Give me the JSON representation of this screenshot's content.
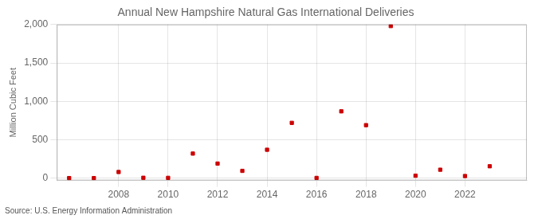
{
  "chart_data": {
    "type": "scatter",
    "title": "Annual New Hampshire Natural Gas International Deliveries",
    "y_label": "Million Cubic Feet",
    "annotations": [
      "Source: U.S. Energy Information Administration"
    ],
    "x": [
      2006,
      2007,
      2008,
      2009,
      2010,
      2011,
      2012,
      2013,
      2014,
      2015,
      2016,
      2017,
      2018,
      2019,
      2020,
      2021,
      2022,
      2023
    ],
    "values": [
      1,
      1,
      80,
      5,
      4,
      320,
      190,
      95,
      370,
      720,
      3,
      870,
      690,
      1980,
      32,
      110,
      28,
      155
    ],
    "color": "#cc0000",
    "marker": "square",
    "xlim": [
      2005.5,
      2024.5
    ],
    "xticks": [
      2008,
      2010,
      2012,
      2014,
      2016,
      2018,
      2020,
      2022
    ],
    "ylim": [
      -30,
      2000
    ],
    "yticks": [
      0,
      500,
      {
        "value": 1000,
        "label": "1,000"
      },
      {
        "value": 1500,
        "label": "1,500"
      },
      {
        "value": 2000,
        "label": "2,000"
      }
    ],
    "grid": true
  }
}
